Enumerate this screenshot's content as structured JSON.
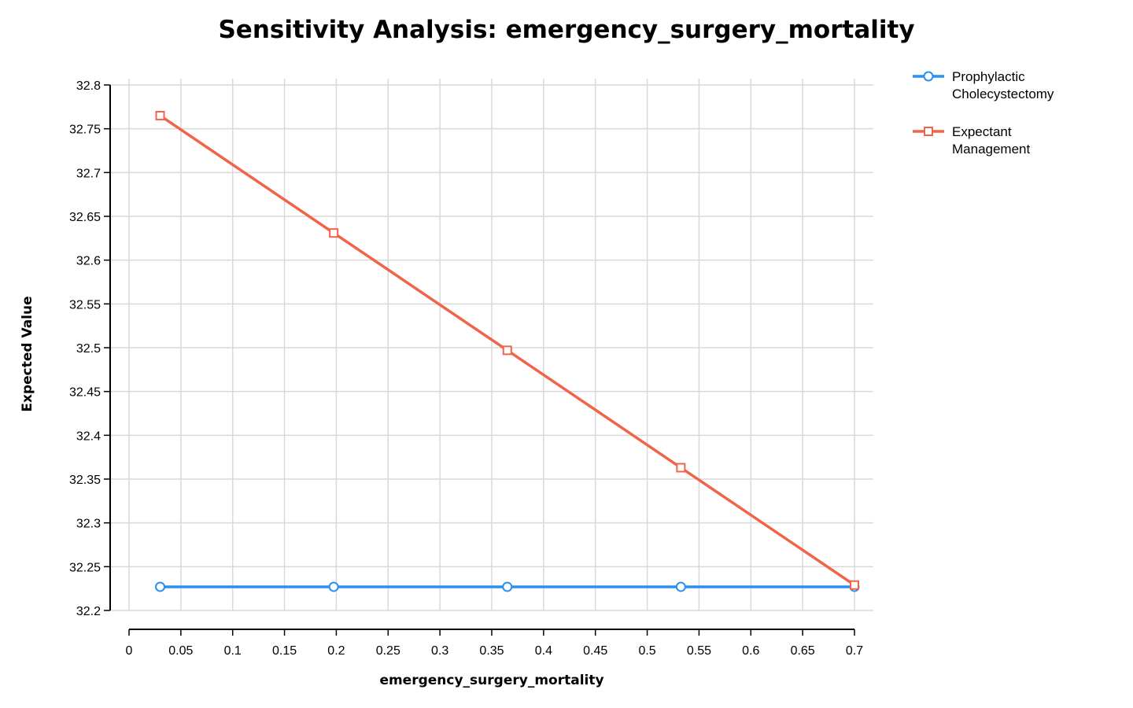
{
  "chart_data": {
    "type": "line",
    "title": "Sensitivity Analysis: emergency_surgery_mortality",
    "xlabel": "emergency_surgery_mortality",
    "ylabel": "Expected Value",
    "xlim": [
      0,
      0.7
    ],
    "ylim": [
      32.2,
      32.8
    ],
    "x_ticks": [
      0,
      0.05,
      0.1,
      0.15,
      0.2,
      0.25,
      0.3,
      0.35,
      0.4,
      0.45,
      0.5,
      0.55,
      0.6,
      0.65,
      0.7
    ],
    "x_tick_labels": [
      "0",
      "0.05",
      "0.1",
      "0.15",
      "0.2",
      "0.25",
      "0.3",
      "0.35",
      "0.4",
      "0.45",
      "0.5",
      "0.55",
      "0.6",
      "0.65",
      "0.7"
    ],
    "y_ticks": [
      32.2,
      32.25,
      32.3,
      32.35,
      32.4,
      32.45,
      32.5,
      32.55,
      32.6,
      32.65,
      32.7,
      32.75,
      32.8
    ],
    "y_tick_labels": [
      "32.2",
      "32.25",
      "32.3",
      "32.35",
      "32.4",
      "32.45",
      "32.5",
      "32.55",
      "32.6",
      "32.65",
      "32.7",
      "32.75",
      "32.8"
    ],
    "grid": true,
    "legend_position": "top-right-outside",
    "series": [
      {
        "name": "Prophylactic Cholecystectomy",
        "legend_lines": [
          "Prophylactic",
          "Cholecystectomy"
        ],
        "color": "#2b8ff0",
        "marker": "circle",
        "x": [
          0.03,
          0.1975,
          0.365,
          0.5325,
          0.7
        ],
        "values": [
          32.227,
          32.227,
          32.227,
          32.227,
          32.227
        ]
      },
      {
        "name": "Expectant Management",
        "legend_lines": [
          "Expectant",
          "Management"
        ],
        "color": "#f0644a",
        "marker": "square",
        "x": [
          0.03,
          0.1975,
          0.365,
          0.5325,
          0.7
        ],
        "values": [
          32.765,
          32.631,
          32.497,
          32.363,
          32.229
        ]
      }
    ]
  }
}
